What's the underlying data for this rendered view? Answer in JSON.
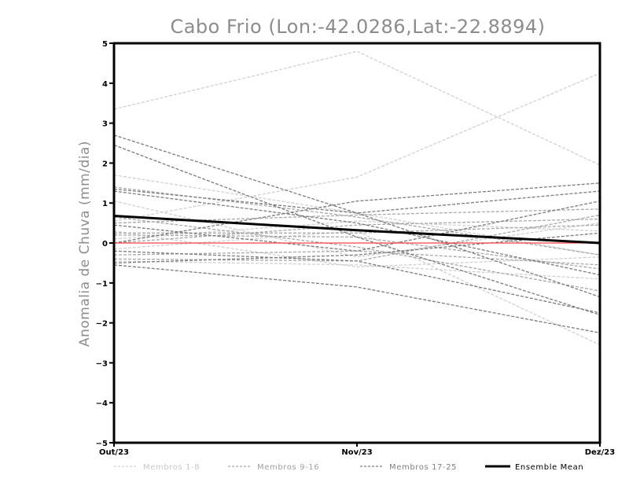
{
  "chart_data": {
    "type": "line",
    "title": "Cabo Frio (Lon:-42.0286,Lat:-22.8894)",
    "ylabel": "Anomalia de Chuva (mm/dia)",
    "xlabel": "",
    "categories": [
      "Out/23",
      "Nov/23",
      "Dez/23"
    ],
    "ylim": [
      -5,
      5
    ],
    "yticks": [
      5,
      4,
      3,
      2,
      1,
      0,
      -1,
      -2,
      -3,
      -4,
      -5
    ],
    "yticks_labels": [
      "5",
      "4",
      "3",
      "2",
      "1",
      "0",
      "−1",
      "−2",
      "−3",
      "−4",
      "−5"
    ],
    "grid": false,
    "legend_position": "bottom",
    "legend": [
      {
        "label": "Membros 1-8",
        "color": "#d0d0d0",
        "style": "dashed"
      },
      {
        "label": "Membros 9-16",
        "color": "#a8a8a8",
        "style": "dashed"
      },
      {
        "label": "Membros 17-25",
        "color": "#7c7c7c",
        "style": "dashed"
      },
      {
        "label": "Ensemble Mean",
        "color": "#000000",
        "style": "solid"
      }
    ],
    "zero_line_color": "#ff4040",
    "groups": [
      {
        "color": "#d0d0d0",
        "members": [
          [
            3.35,
            4.8,
            1.95
          ],
          [
            0.55,
            1.65,
            4.25
          ],
          [
            1.7,
            0.75,
            -0.3
          ],
          [
            -0.15,
            0.3,
            -2.55
          ],
          [
            0.3,
            -0.6,
            -0.35
          ],
          [
            1.05,
            -0.35,
            0.5
          ],
          [
            -0.45,
            -0.55,
            -0.9
          ],
          [
            0.1,
            0.55,
            0.3
          ]
        ]
      },
      {
        "color": "#a8a8a8",
        "members": [
          [
            0.5,
            0.7,
            0.85
          ],
          [
            1.4,
            0.65,
            -0.3
          ],
          [
            0.0,
            0.45,
            0.6
          ],
          [
            -0.3,
            -0.2,
            -0.55
          ],
          [
            0.25,
            0.25,
            0.45
          ],
          [
            0.65,
            -0.1,
            -1.2
          ],
          [
            -0.4,
            -0.45,
            0.7
          ],
          [
            0.2,
            0.15,
            -0.65
          ]
        ]
      },
      {
        "color": "#7c7c7c",
        "members": [
          [
            2.7,
            0.75,
            -1.35
          ],
          [
            2.45,
            0.15,
            -1.8
          ],
          [
            1.35,
            0.75,
            1.3
          ],
          [
            1.3,
            0.5,
            -0.8
          ],
          [
            -0.5,
            -0.3,
            0.25
          ],
          [
            -0.55,
            -1.1,
            -2.25
          ],
          [
            0.0,
            1.05,
            1.5
          ],
          [
            0.45,
            -0.2,
            1.05
          ],
          [
            -0.2,
            -0.45,
            -1.75
          ]
        ]
      }
    ],
    "series": [
      {
        "name": "Ensemble Mean",
        "values": [
          0.68,
          0.32,
          0.0
        ]
      }
    ]
  }
}
